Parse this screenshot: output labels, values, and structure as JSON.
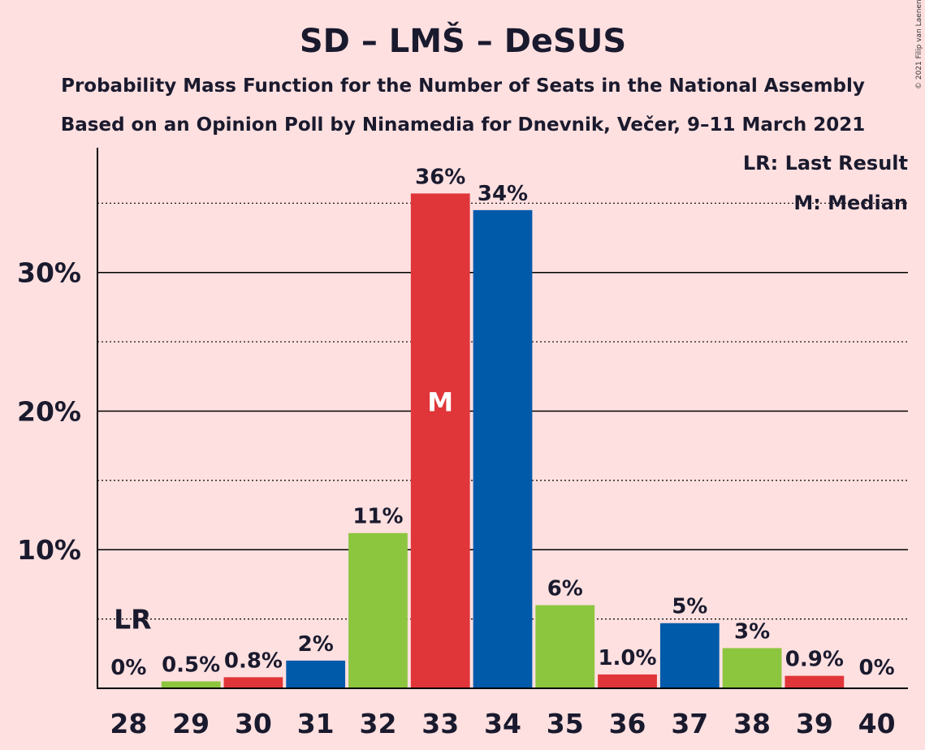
{
  "chart_data": {
    "type": "bar",
    "title": "SD – LMŠ – DeSUS",
    "subtitle1": "Probability Mass Function for the Number of Seats in the National Assembly",
    "subtitle2": "Based on an Opinion Poll by Ninamedia for Dnevnik, Večer, 9–11 March 2021",
    "copyright": "© 2021 Filip van Laenen",
    "categories": [
      "28",
      "29",
      "30",
      "31",
      "32",
      "33",
      "34",
      "35",
      "36",
      "37",
      "38",
      "39",
      "40"
    ],
    "values": [
      0,
      0.5,
      0.8,
      2.0,
      11.2,
      35.7,
      34.5,
      6.0,
      1.0,
      4.7,
      2.9,
      0.9,
      0
    ],
    "labels": [
      "0%",
      "0.5%",
      "0.8%",
      "2%",
      "11%",
      "36%",
      "34%",
      "6%",
      "1.0%",
      "5%",
      "3%",
      "0.9%",
      "0%"
    ],
    "colors": [
      "#E0363A",
      "#8CC63F",
      "#E0363A",
      "#005AAA",
      "#8CC63F",
      "#E0363A",
      "#005AAA",
      "#8CC63F",
      "#E0363A",
      "#005AAA",
      "#8CC63F",
      "#E0363A",
      "#8CC63F"
    ],
    "ylim": [
      0,
      39
    ],
    "yticks": [
      10,
      20,
      30
    ],
    "ytick_labels": [
      "10%",
      "20%",
      "30%"
    ],
    "minor_gridlines": [
      5,
      15,
      25,
      35
    ],
    "last_result_category": "28",
    "last_result_marker": "LR",
    "median_category": "33",
    "median_marker": "M",
    "legend": [
      "LR: Last Result",
      "M: Median"
    ],
    "legend_position": "top-right",
    "xlabel": "",
    "ylabel": ""
  }
}
